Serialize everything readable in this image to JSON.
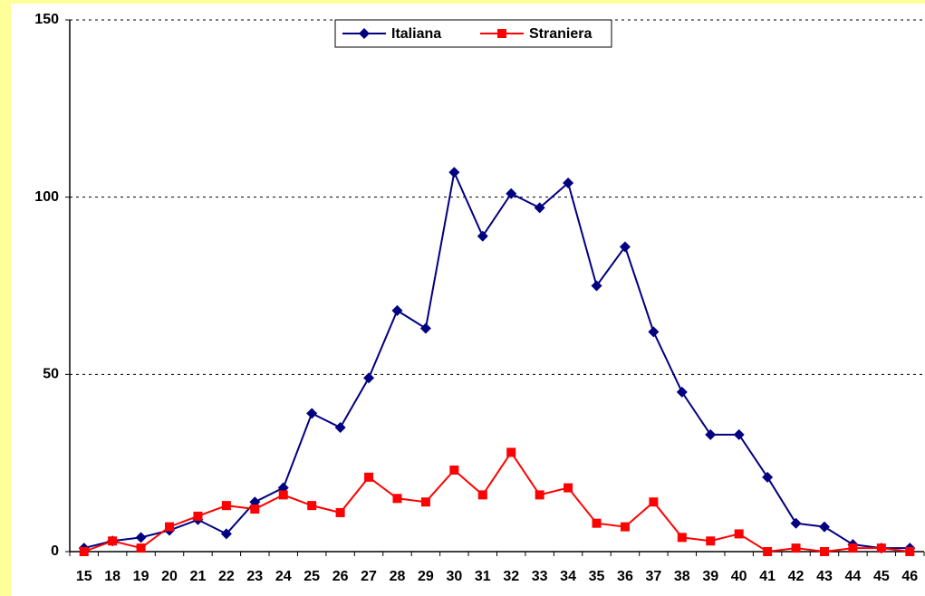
{
  "chart_data": {
    "type": "line",
    "categories": [
      "15",
      "18",
      "19",
      "20",
      "21",
      "22",
      "23",
      "24",
      "25",
      "26",
      "27",
      "28",
      "29",
      "30",
      "31",
      "32",
      "33",
      "34",
      "35",
      "36",
      "37",
      "38",
      "39",
      "40",
      "41",
      "42",
      "43",
      "44",
      "45",
      "46"
    ],
    "series": [
      {
        "name": "Italiana",
        "color": "#000080",
        "marker": "diamond",
        "values": [
          1,
          3,
          4,
          6,
          9,
          5,
          14,
          18,
          39,
          35,
          49,
          68,
          63,
          107,
          89,
          101,
          97,
          104,
          75,
          86,
          62,
          45,
          33,
          33,
          21,
          8,
          7,
          2,
          1,
          1
        ]
      },
      {
        "name": "Straniera",
        "color": "#ff0000",
        "marker": "square",
        "values": [
          0,
          3,
          1,
          7,
          10,
          13,
          12,
          16,
          13,
          11,
          21,
          15,
          14,
          23,
          16,
          28,
          16,
          18,
          8,
          7,
          14,
          4,
          3,
          5,
          0,
          1,
          0,
          1,
          1,
          0
        ]
      }
    ],
    "ylim": [
      0,
      150
    ],
    "yticks": [
      0,
      50,
      100,
      150
    ],
    "grid": true,
    "legend": "top"
  }
}
